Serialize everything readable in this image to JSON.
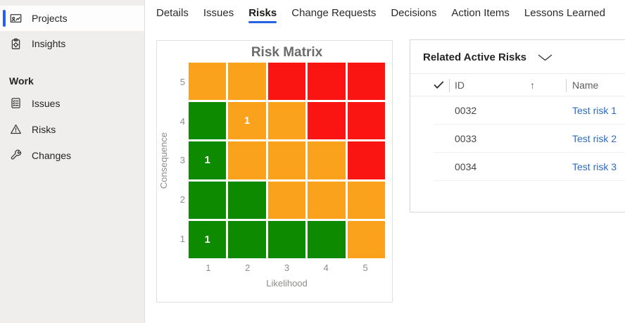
{
  "sidebar": {
    "items": [
      {
        "label": "Projects",
        "selected": true
      },
      {
        "label": "Insights",
        "selected": false
      }
    ],
    "section_label": "Work",
    "work_items": [
      {
        "label": "Issues"
      },
      {
        "label": "Risks"
      },
      {
        "label": "Changes"
      }
    ]
  },
  "tabs": {
    "active": "Risks",
    "items": [
      {
        "label": "Details"
      },
      {
        "label": "Issues"
      },
      {
        "label": "Risks"
      },
      {
        "label": "Change Requests"
      },
      {
        "label": "Decisions"
      },
      {
        "label": "Action Items"
      },
      {
        "label": "Lessons Learned"
      }
    ]
  },
  "chart_data": {
    "type": "heatmap",
    "title": "Risk Matrix",
    "xlabel": "Likelihood",
    "ylabel": "Consequence",
    "x_ticks": [
      "1",
      "2",
      "3",
      "4",
      "5"
    ],
    "y_ticks": [
      "5",
      "4",
      "3",
      "2",
      "1"
    ],
    "x_range": [
      1,
      5
    ],
    "y_range": [
      1,
      5
    ],
    "legend": "none",
    "cell_colors": {
      "green": "#0e8a00",
      "orange": "#faa21b",
      "red": "#fa1512"
    },
    "rows": [
      {
        "consequence": 5,
        "cells": [
          {
            "color": "orange"
          },
          {
            "color": "orange"
          },
          {
            "color": "red"
          },
          {
            "color": "red"
          },
          {
            "color": "red"
          }
        ]
      },
      {
        "consequence": 4,
        "cells": [
          {
            "color": "green"
          },
          {
            "color": "orange",
            "count": "1"
          },
          {
            "color": "orange"
          },
          {
            "color": "red"
          },
          {
            "color": "red"
          }
        ]
      },
      {
        "consequence": 3,
        "cells": [
          {
            "color": "green",
            "count": "1"
          },
          {
            "color": "orange"
          },
          {
            "color": "orange"
          },
          {
            "color": "orange"
          },
          {
            "color": "red"
          }
        ]
      },
      {
        "consequence": 2,
        "cells": [
          {
            "color": "green"
          },
          {
            "color": "green"
          },
          {
            "color": "orange"
          },
          {
            "color": "orange"
          },
          {
            "color": "orange"
          }
        ]
      },
      {
        "consequence": 1,
        "cells": [
          {
            "color": "green",
            "count": "1"
          },
          {
            "color": "green"
          },
          {
            "color": "green"
          },
          {
            "color": "green"
          },
          {
            "color": "orange"
          }
        ]
      }
    ]
  },
  "risk_panel": {
    "title": "Related Active Risks",
    "table": {
      "id_header": "ID",
      "name_header": "Name",
      "sort_arrow": "↑",
      "sort": "ascending",
      "rows": [
        {
          "id": "0032",
          "name": "Test risk 1"
        },
        {
          "id": "0033",
          "name": "Test risk 2"
        },
        {
          "id": "0034",
          "name": "Test risk 3"
        }
      ]
    }
  },
  "colors": {
    "accent": "#2563e0",
    "link": "#2b6cbe",
    "green": "#0e8a00",
    "orange": "#faa21b",
    "red": "#fa1512"
  }
}
